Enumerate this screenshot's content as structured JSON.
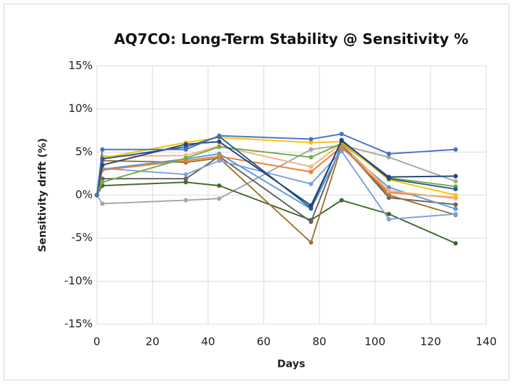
{
  "chart_data": {
    "type": "line",
    "title": "AQ7CO: Long-Term Stability @ Sensitivity %",
    "x_label": "Days",
    "y_label": "Sensitivity drift (%)",
    "x": [
      0,
      2,
      32,
      44,
      77,
      88,
      105,
      129
    ],
    "xlim": [
      0,
      140
    ],
    "xticks": [
      0,
      20,
      40,
      60,
      80,
      100,
      120,
      140
    ],
    "ylim": [
      -15,
      15
    ],
    "yticks": [
      {
        "value": -15,
        "label": "-15%"
      },
      {
        "value": -10,
        "label": "-10%"
      },
      {
        "value": -5,
        "label": "-5%"
      },
      {
        "value": 0,
        "label": "0%"
      },
      {
        "value": 5,
        "label": "5%"
      },
      {
        "value": 10,
        "label": "10%"
      },
      {
        "value": 15,
        "label": "15%"
      }
    ],
    "grid": true,
    "series": [
      {
        "color": "#a5a5a5",
        "values": [
          0,
          -1.0,
          -0.6,
          -0.4,
          5.3,
          5.8,
          4.4,
          1.6
        ]
      },
      {
        "color": "#43682b",
        "values": [
          0,
          1.1,
          1.5,
          1.1,
          -2.9,
          -0.6,
          -2.2,
          -5.6
        ]
      },
      {
        "color": "#636363",
        "values": [
          0,
          1.9,
          1.9,
          4.5,
          -3.1,
          5.9,
          -0.3,
          -1.1
        ]
      },
      {
        "color": "#9e7432",
        "values": [
          0,
          4.0,
          3.8,
          4.3,
          -5.5,
          5.7,
          0.0,
          -2.3
        ]
      },
      {
        "color": "#7fa0d8",
        "values": [
          0,
          3.1,
          2.4,
          4.0,
          1.3,
          5.1,
          -2.8,
          -2.2
        ]
      },
      {
        "color": "#5b9bd5",
        "values": [
          0,
          3.0,
          4.2,
          4.8,
          -1.6,
          5.5,
          0.9,
          -1.6
        ]
      },
      {
        "color": "#ed7d31",
        "values": [
          0,
          2.9,
          4.0,
          4.5,
          2.7,
          5.6,
          0.3,
          -0.3
        ]
      },
      {
        "color": "#f4b183",
        "values": [
          0,
          4.5,
          4.6,
          5.7,
          3.3,
          6.0,
          0.5,
          -0.4
        ]
      },
      {
        "color": "#70ad47",
        "values": [
          0,
          1.5,
          4.3,
          5.6,
          4.4,
          6.0,
          2.0,
          1.0
        ]
      },
      {
        "color": "#ffc000",
        "values": [
          0,
          4.3,
          6.1,
          6.7,
          6.1,
          6.2,
          1.8,
          0.0
        ]
      },
      {
        "color": "#255e91",
        "values": [
          0,
          4.2,
          5.6,
          6.8,
          -1.5,
          6.4,
          1.9,
          0.7
        ]
      },
      {
        "color": "#264478",
        "values": [
          0,
          3.5,
          5.9,
          6.2,
          -1.2,
          6.3,
          2.1,
          2.2
        ]
      },
      {
        "color": "#4472c4",
        "values": [
          0,
          5.3,
          5.3,
          6.9,
          6.5,
          7.1,
          4.8,
          5.3
        ]
      }
    ]
  }
}
